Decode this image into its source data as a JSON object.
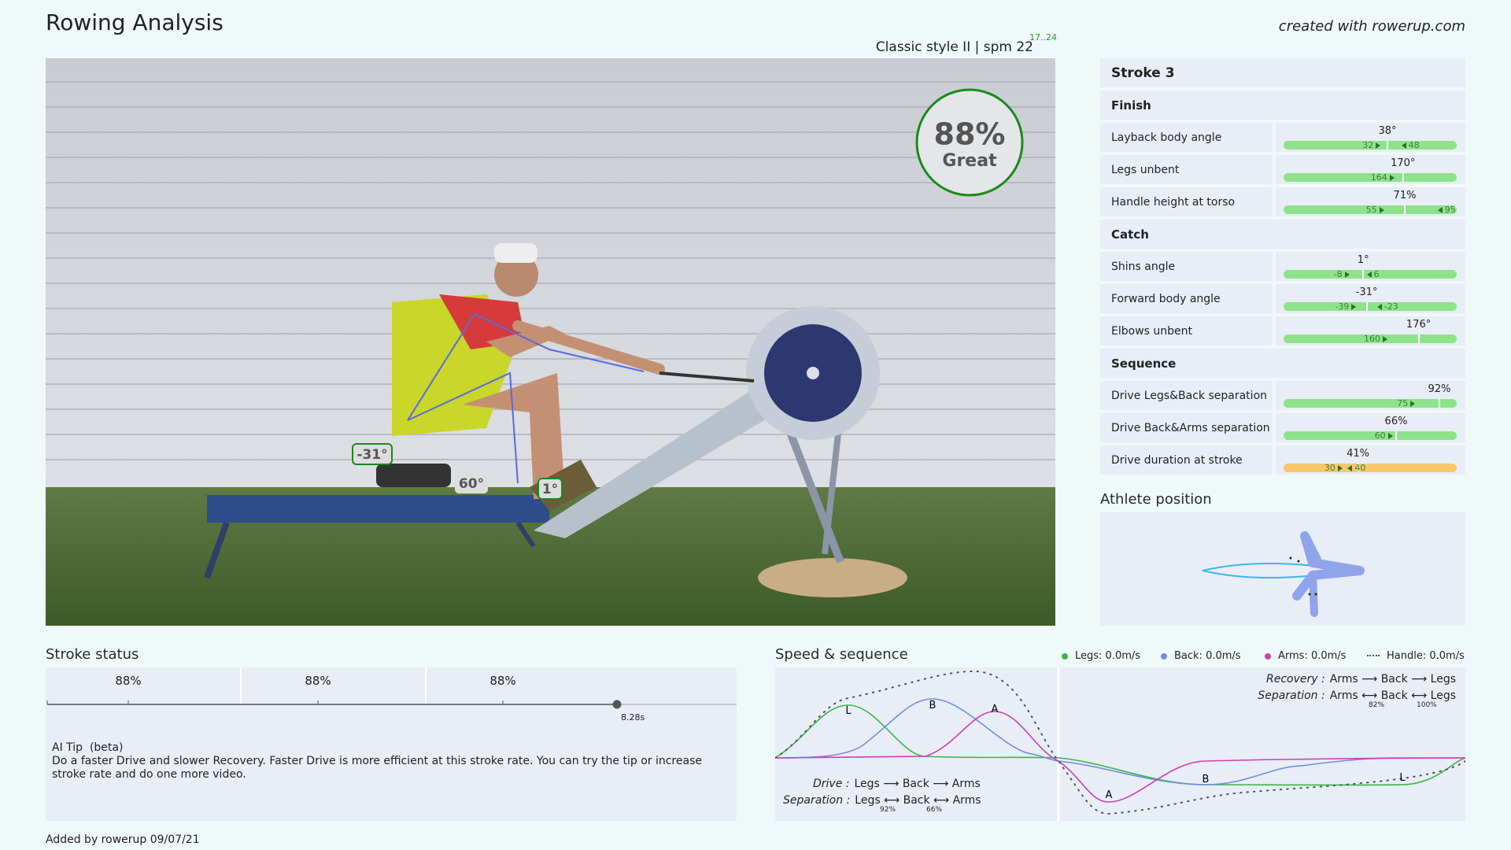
{
  "header": {
    "title": "Rowing Analysis",
    "credit": "created with rowerup.com",
    "style": "Classic style II | spm 22",
    "spm_range": "17..24"
  },
  "video": {
    "score": "88%",
    "rating": "Great",
    "angles": [
      "-31°",
      "60°",
      "1°"
    ]
  },
  "stroke_panel": {
    "title": "Stroke 3",
    "sections": [
      {
        "title": "Finish",
        "rows": [
          {
            "label": "Layback body angle",
            "value": "38°",
            "min": "32",
            "max": "48",
            "bar_color": "#8ee38a"
          },
          {
            "label": "Legs unbent",
            "value": "170°",
            "min": "164",
            "bar_color": "#8ee38a"
          },
          {
            "label": "Handle height at torso",
            "value": "71%",
            "min": "55",
            "max": "95",
            "bar_color": "#8ee38a"
          }
        ]
      },
      {
        "title": "Catch",
        "rows": [
          {
            "label": "Shins angle",
            "value": "1°",
            "min": "-8",
            "max": "6",
            "bar_color": "#8ee38a"
          },
          {
            "label": "Forward body angle",
            "value": "-31°",
            "min": "-39",
            "max": "-23",
            "bar_color": "#8ee38a"
          },
          {
            "label": "Elbows unbent",
            "value": "176°",
            "min": "160",
            "bar_color": "#8ee38a"
          }
        ]
      },
      {
        "title": "Sequence",
        "rows": [
          {
            "label": "Drive Legs&Back separation",
            "value": "92%",
            "min": "75",
            "bar_color": "#8ee38a"
          },
          {
            "label": "Drive Back&Arms separation",
            "value": "66%",
            "min": "60",
            "bar_color": "#8ee38a"
          },
          {
            "label": "Drive duration at stroke",
            "value": "41%",
            "min": "30",
            "max": "40",
            "bar_color": "#f8c76a"
          }
        ]
      }
    ]
  },
  "athlete_position": {
    "title": "Athlete position"
  },
  "stroke_status": {
    "title": "Stroke status",
    "scores": [
      "88%",
      "88%",
      "88%"
    ],
    "time": "8.28s",
    "tip_title": "AI Tip  (beta)",
    "tip": "Do a faster Drive and slower Recovery. Faster Drive is more efficient at this stroke rate. You can try the tip or increase stroke rate and do one more video."
  },
  "speed": {
    "title": "Speed & sequence",
    "legend": [
      {
        "name": "Legs: 0.0m/s",
        "color": "#3bb54a"
      },
      {
        "name": "Back: 0.0m/s",
        "color": "#6f8ee0"
      },
      {
        "name": "Arms: 0.0m/s",
        "color": "#cc3fb8"
      },
      {
        "name": "Handle: 0.0m/s",
        "color": "#555555"
      }
    ],
    "drive": {
      "label": "Drive :",
      "order": "Legs ⟶ Back ⟶ Arms",
      "sep_label": "Separation :",
      "sep": "Legs ⟷ Back ⟷ Arms",
      "sep_values": [
        "92%",
        "66%"
      ]
    },
    "recovery": {
      "label": "Recovery :",
      "order": "Arms ⟶ Back ⟶ Legs",
      "sep_label": "Separation :",
      "sep": "Arms ⟷ Back ⟷ Legs",
      "sep_values": [
        "82%",
        "100%"
      ]
    },
    "phase_labels": [
      "L",
      "B",
      "A",
      "A",
      "B",
      "L"
    ]
  },
  "footer": "Added by rowerup 09/07/21"
}
